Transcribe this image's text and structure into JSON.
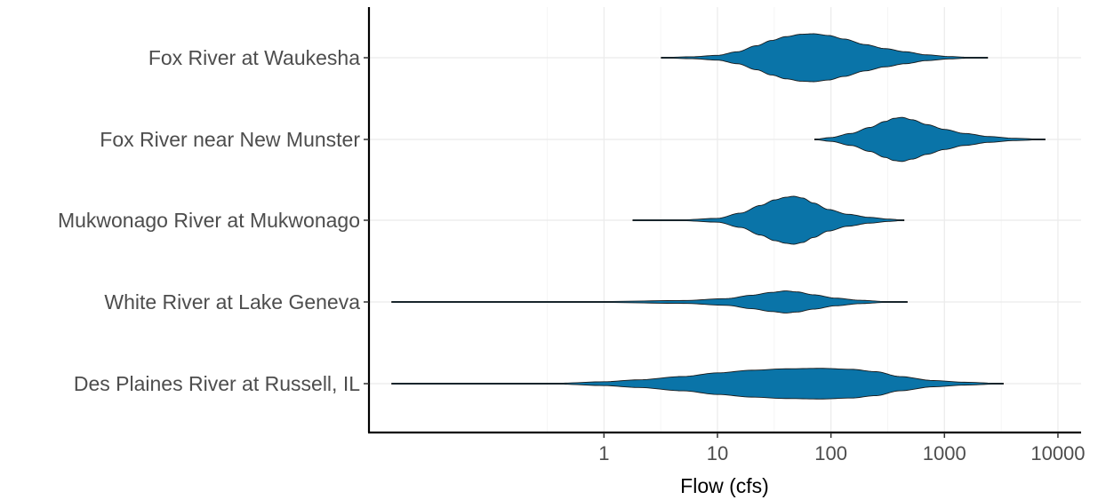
{
  "chart_data": {
    "type": "violin",
    "orientation": "horizontal",
    "xlabel": "Flow (cfs)",
    "ylabel": "",
    "title": "",
    "x_scale": "log10",
    "x_ticks": [
      {
        "value": 1,
        "label": "1"
      },
      {
        "value": 10,
        "label": "10"
      },
      {
        "value": 100,
        "label": "100"
      },
      {
        "value": 1000,
        "label": "1000"
      },
      {
        "value": 10000,
        "label": "10000"
      }
    ],
    "xlim": [
      0.0085,
      16000
    ],
    "grid": true,
    "fill_color": "#0a74a8",
    "outline_color": "#1a1a1a",
    "categories": [
      {
        "name": "Fox River at Waukesha",
        "min": 3.2,
        "max": 2400,
        "density": [
          [
            3.2,
            0.01
          ],
          [
            6,
            0.04
          ],
          [
            10,
            0.1
          ],
          [
            15,
            0.25
          ],
          [
            22,
            0.5
          ],
          [
            30,
            0.72
          ],
          [
            40,
            0.88
          ],
          [
            55,
            0.98
          ],
          [
            70,
            1.0
          ],
          [
            95,
            0.93
          ],
          [
            130,
            0.78
          ],
          [
            200,
            0.55
          ],
          [
            300,
            0.38
          ],
          [
            450,
            0.25
          ],
          [
            700,
            0.12
          ],
          [
            1100,
            0.05
          ],
          [
            1600,
            0.02
          ],
          [
            2400,
            0.005
          ]
        ]
      },
      {
        "name": "Fox River near New Munster",
        "min": 72,
        "max": 7700,
        "density": [
          [
            72,
            0.01
          ],
          [
            100,
            0.08
          ],
          [
            150,
            0.25
          ],
          [
            220,
            0.5
          ],
          [
            300,
            0.75
          ],
          [
            360,
            0.88
          ],
          [
            420,
            0.92
          ],
          [
            520,
            0.82
          ],
          [
            700,
            0.62
          ],
          [
            1000,
            0.42
          ],
          [
            1500,
            0.25
          ],
          [
            2500,
            0.12
          ],
          [
            4000,
            0.05
          ],
          [
            7700,
            0.005
          ]
        ]
      },
      {
        "name": "Mukwonago River at Mukwonago",
        "min": 1.8,
        "max": 440,
        "density": [
          [
            1.8,
            0.005
          ],
          [
            5,
            0.02
          ],
          [
            10,
            0.08
          ],
          [
            16,
            0.3
          ],
          [
            24,
            0.62
          ],
          [
            32,
            0.85
          ],
          [
            40,
            0.96
          ],
          [
            47,
            1.0
          ],
          [
            56,
            0.93
          ],
          [
            70,
            0.72
          ],
          [
            95,
            0.45
          ],
          [
            140,
            0.25
          ],
          [
            220,
            0.12
          ],
          [
            320,
            0.05
          ],
          [
            440,
            0.005
          ]
        ]
      },
      {
        "name": "White River at Lake Geneva",
        "min": 0.0135,
        "max": 470,
        "density": [
          [
            0.0135,
            0.002
          ],
          [
            0.1,
            0.005
          ],
          [
            1,
            0.02
          ],
          [
            5,
            0.06
          ],
          [
            12,
            0.14
          ],
          [
            20,
            0.28
          ],
          [
            30,
            0.4
          ],
          [
            40,
            0.46
          ],
          [
            50,
            0.42
          ],
          [
            70,
            0.3
          ],
          [
            110,
            0.16
          ],
          [
            180,
            0.07
          ],
          [
            300,
            0.02
          ],
          [
            470,
            0.005
          ]
        ]
      },
      {
        "name": "Des Plaines River at Russell, IL",
        "min": 0.0135,
        "max": 3300,
        "density": [
          [
            0.0135,
            0.003
          ],
          [
            0.1,
            0.006
          ],
          [
            0.4,
            0.02
          ],
          [
            1,
            0.08
          ],
          [
            2,
            0.16
          ],
          [
            5,
            0.3
          ],
          [
            10,
            0.45
          ],
          [
            20,
            0.56
          ],
          [
            40,
            0.62
          ],
          [
            80,
            0.64
          ],
          [
            150,
            0.6
          ],
          [
            250,
            0.5
          ],
          [
            400,
            0.3
          ],
          [
            800,
            0.13
          ],
          [
            1500,
            0.06
          ],
          [
            3300,
            0.005
          ]
        ]
      }
    ]
  }
}
